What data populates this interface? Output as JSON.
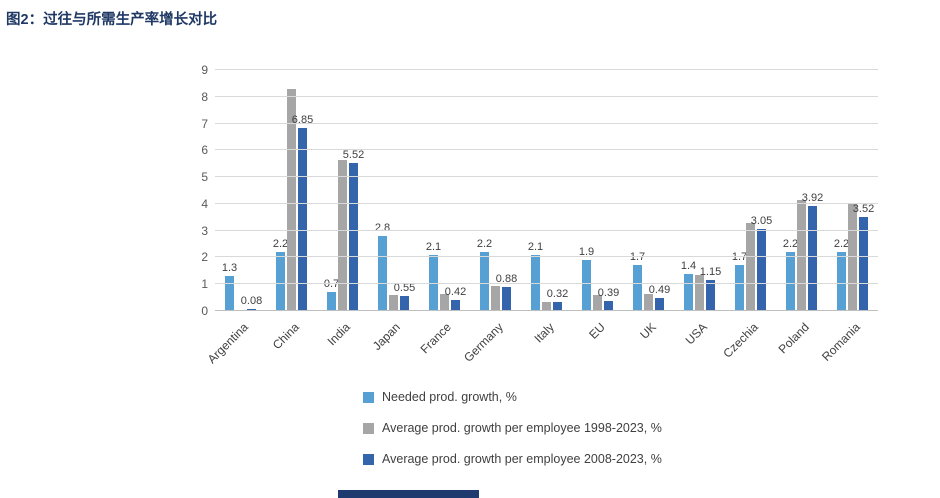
{
  "figure": {
    "title": "图2：过往与所需生产率增长对比"
  },
  "chart_data": {
    "type": "bar",
    "title": "图2：过往与所需生产率增长对比",
    "xlabel": "",
    "ylabel": "",
    "categories": [
      "Argentina",
      "China",
      "India",
      "Japan",
      "France",
      "Germany",
      "Italy",
      "EU",
      "UK",
      "USA",
      "Czechia",
      "Poland",
      "Romania"
    ],
    "series": [
      {
        "name": "Needed prod. growth, %",
        "color": "#56A0D3",
        "show_labels": true,
        "values": [
          1.3,
          2.2,
          0.7,
          2.8,
          2.1,
          2.2,
          2.1,
          1.9,
          1.7,
          1.4,
          1.7,
          2.2,
          2.2
        ]
      },
      {
        "name": "Average prod. growth per employee 1998-2023, %",
        "color": "#A6A6A6",
        "show_labels": false,
        "values": [
          0,
          8.3,
          5.65,
          0.6,
          0.65,
          0.95,
          0.35,
          0.6,
          0.65,
          1.35,
          3.3,
          4.15,
          4.0
        ]
      },
      {
        "name": "Average prod. growth per employee 2008-2023, %",
        "color": "#3465AC",
        "show_labels": true,
        "values": [
          0.08,
          6.85,
          5.52,
          0.55,
          0.42,
          0.88,
          0.32,
          0.39,
          0.49,
          1.15,
          3.05,
          3.92,
          3.52
        ]
      }
    ],
    "ylim": [
      0,
      9
    ],
    "yticks": [
      0,
      1,
      2,
      3,
      4,
      5,
      6,
      7,
      8,
      9
    ],
    "grid": true,
    "legend_position": "bottom-left-stacked"
  }
}
